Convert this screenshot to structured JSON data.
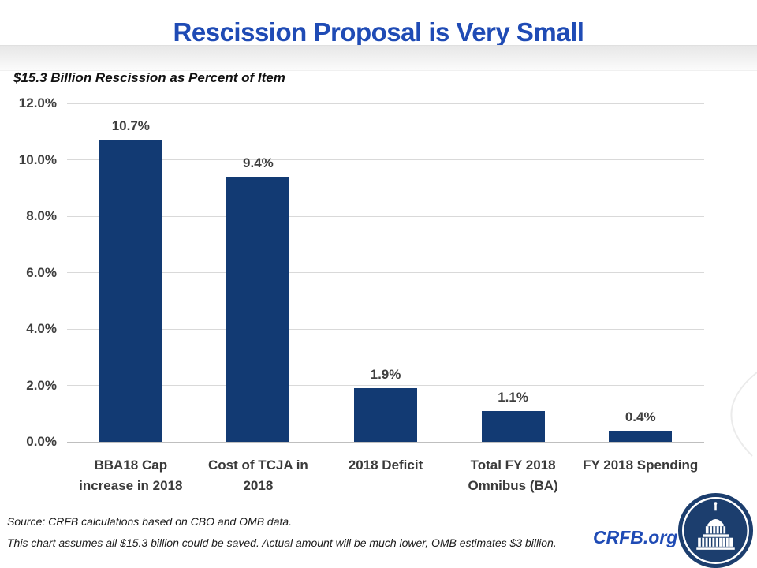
{
  "header": {
    "title": "Rescission Proposal is Very Small",
    "subtitle": "$15.3 Billion Rescission as Percent of Item"
  },
  "chart_data": {
    "type": "bar",
    "title": "Rescission Proposal is Very Small",
    "subtitle": "$15.3 Billion Rescission as Percent of Item",
    "categories": [
      "BBA18 Cap increase in 2018",
      "Cost of TCJA in 2018",
      "2018 Deficit",
      "Total FY 2018 Omnibus (BA)",
      "FY 2018 Spending"
    ],
    "values": [
      10.7,
      9.4,
      1.9,
      1.1,
      0.4
    ],
    "data_labels": [
      "10.7%",
      "9.4%",
      "1.9%",
      "1.1%",
      "0.4%"
    ],
    "xlabel": "",
    "ylabel": "",
    "ylim": [
      0,
      12
    ],
    "yticks": [
      0,
      2,
      4,
      6,
      8,
      10,
      12
    ],
    "ytick_labels": [
      "0.0%",
      "2.0%",
      "4.0%",
      "6.0%",
      "8.0%",
      "10.0%",
      "12.0%"
    ],
    "grid": true,
    "legend": false,
    "bar_color": "#123A73"
  },
  "footer": {
    "source": "Source: CRFB calculations based on CBO and OMB data.",
    "note": "This chart assumes all $15.3 billion could be saved. Actual amount will be much lower, OMB estimates $3 billion.",
    "brand": "CRFB.org"
  },
  "colors": {
    "title_blue": "#1F4BB5",
    "bar_navy": "#123A73",
    "gridline_gray": "#D9D9D9",
    "axis_text_gray": "#3F3F3F",
    "logo_navy": "#1C3E6E"
  },
  "icons": {
    "logo": "capitol-dome-icon"
  }
}
